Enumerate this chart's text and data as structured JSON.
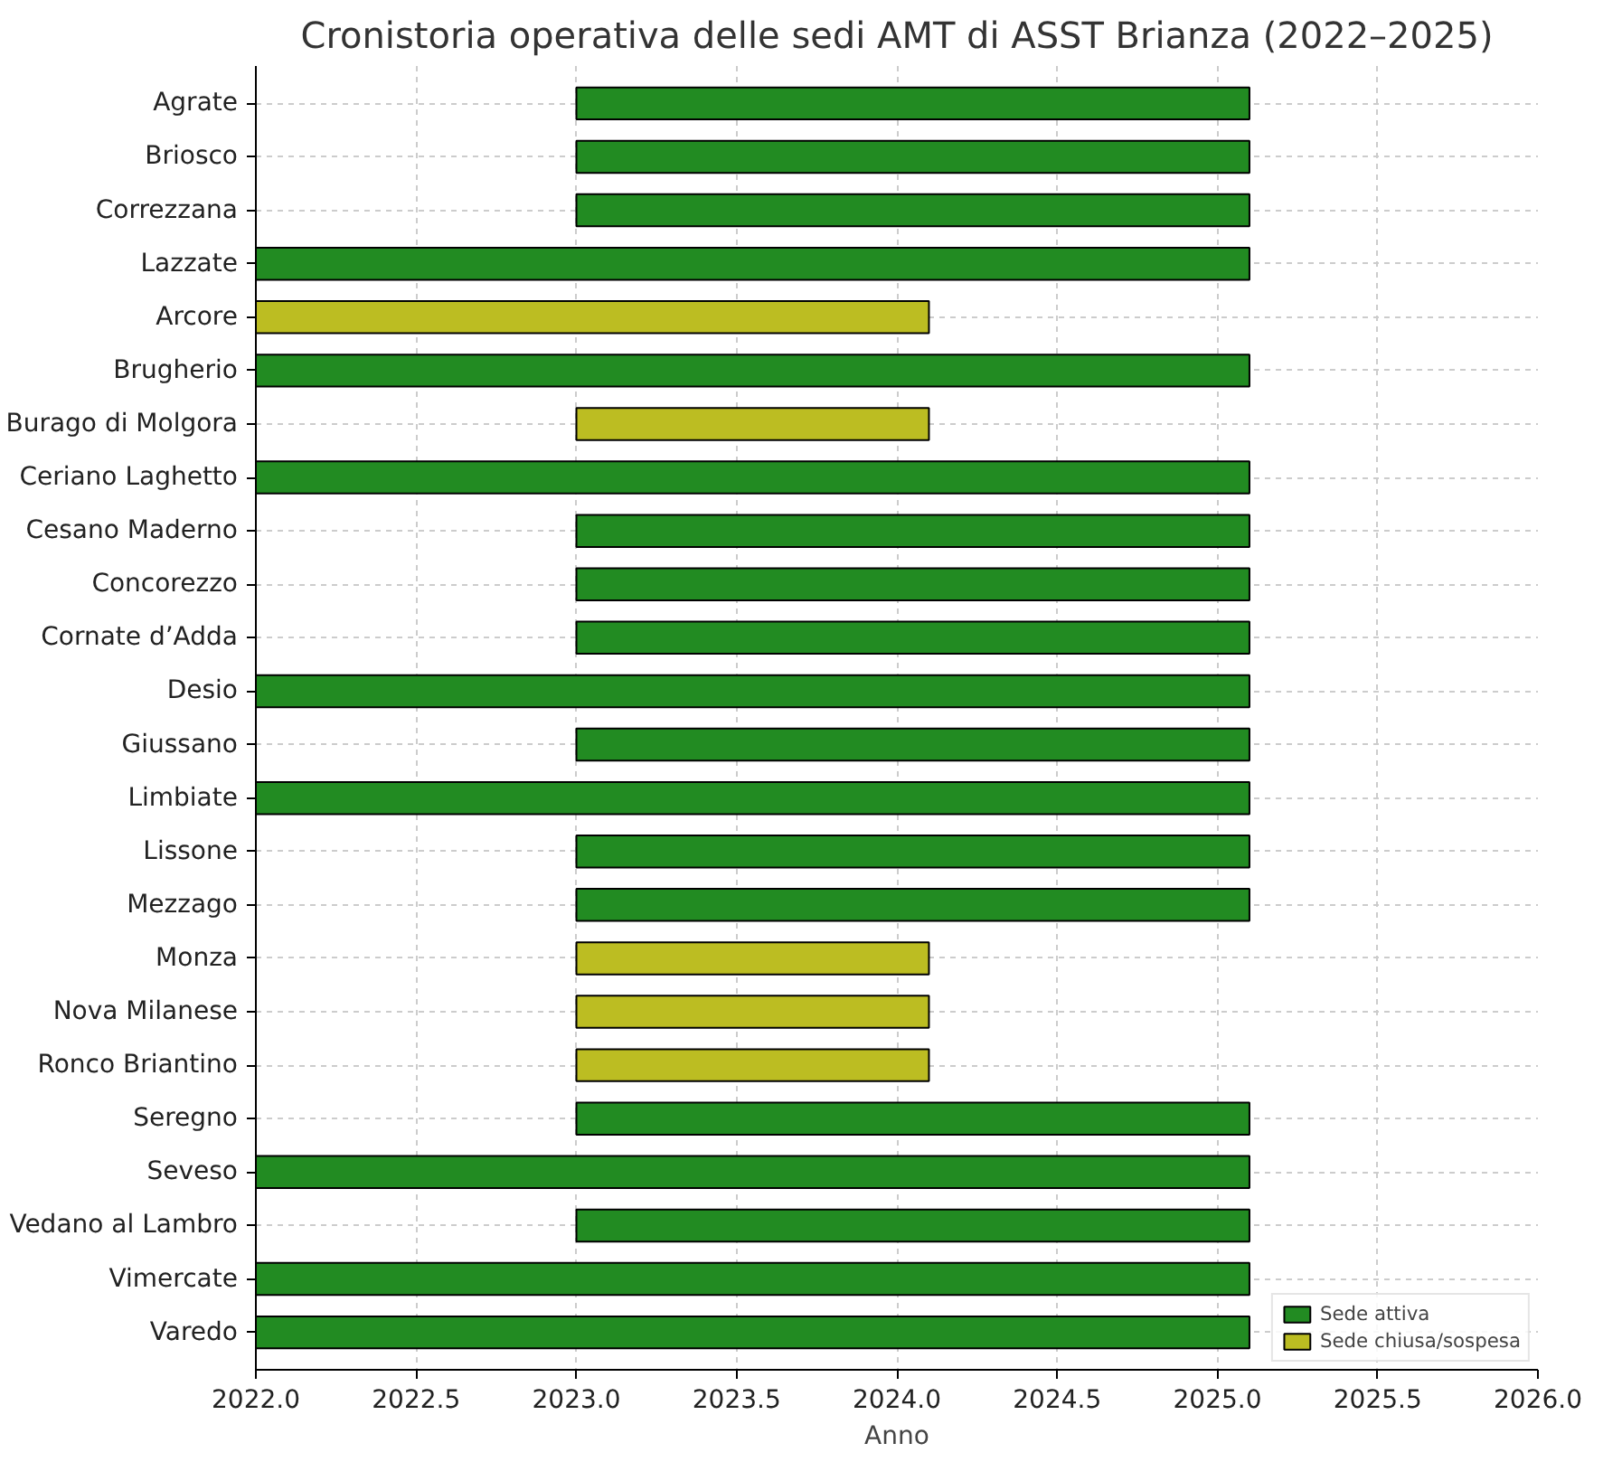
{
  "chart_data": {
    "type": "bar",
    "orientation": "horizontal",
    "title": "Cronistoria operativa delle sedi AMT di ASST Brianza (2022–2025)",
    "xlabel": "Anno",
    "categories": [
      "Agrate",
      "Briosco",
      "Correzzana",
      "Lazzate",
      "Arcore",
      "Brugherio",
      "Burago di Molgora",
      "Ceriano Laghetto",
      "Cesano Maderno",
      "Concorezzo",
      "Cornate d’Adda",
      "Desio",
      "Giussano",
      "Limbiate",
      "Lissone",
      "Mezzago",
      "Monza",
      "Nova Milanese",
      "Ronco Briantino",
      "Seregno",
      "Seveso",
      "Vedano al Lambro",
      "Vimercate",
      "Varedo"
    ],
    "series": [
      {
        "name": "Sede attiva",
        "color": "#228b22",
        "values": [
          2.1,
          2.1,
          2.1,
          3.1,
          null,
          3.1,
          null,
          3.1,
          2.1,
          2.1,
          2.1,
          3.1,
          2.1,
          3.1,
          2.1,
          2.1,
          null,
          null,
          null,
          2.1,
          3.1,
          2.1,
          3.1,
          3.1
        ],
        "base": [
          2023,
          2023,
          2023,
          2022,
          null,
          2022,
          null,
          2022,
          2023,
          2023,
          2023,
          2022,
          2023,
          2022,
          2023,
          2023,
          null,
          null,
          null,
          2023,
          2022,
          2023,
          2022,
          2022
        ]
      },
      {
        "name": "Sede chiusa/sospesa",
        "color": "#bcbd22",
        "values": [
          null,
          null,
          null,
          null,
          2.1,
          null,
          1.1,
          null,
          null,
          null,
          null,
          null,
          null,
          null,
          null,
          null,
          1.1,
          1.1,
          1.1,
          null,
          null,
          null,
          null,
          null
        ],
        "base": [
          null,
          null,
          null,
          null,
          2022,
          null,
          2023,
          null,
          null,
          null,
          null,
          null,
          null,
          null,
          null,
          null,
          2023,
          2023,
          2023,
          null,
          null,
          null,
          null,
          null
        ]
      }
    ],
    "xlim": [
      2022,
      2026
    ],
    "xticks": [
      {
        "value": 2022,
        "label": "2022.0"
      },
      {
        "value": 2022.5,
        "label": "2022.5"
      },
      {
        "value": 2023,
        "label": "2023.0"
      },
      {
        "value": 2023.5,
        "label": "2023.5"
      },
      {
        "value": 2024,
        "label": "2024.0"
      },
      {
        "value": 2024.5,
        "label": "2024.5"
      },
      {
        "value": 2025,
        "label": "2025.0"
      },
      {
        "value": 2025.5,
        "label": "2025.5"
      },
      {
        "value": 2026,
        "label": "2026.0"
      }
    ],
    "grid": true,
    "legend": "bottom right"
  }
}
